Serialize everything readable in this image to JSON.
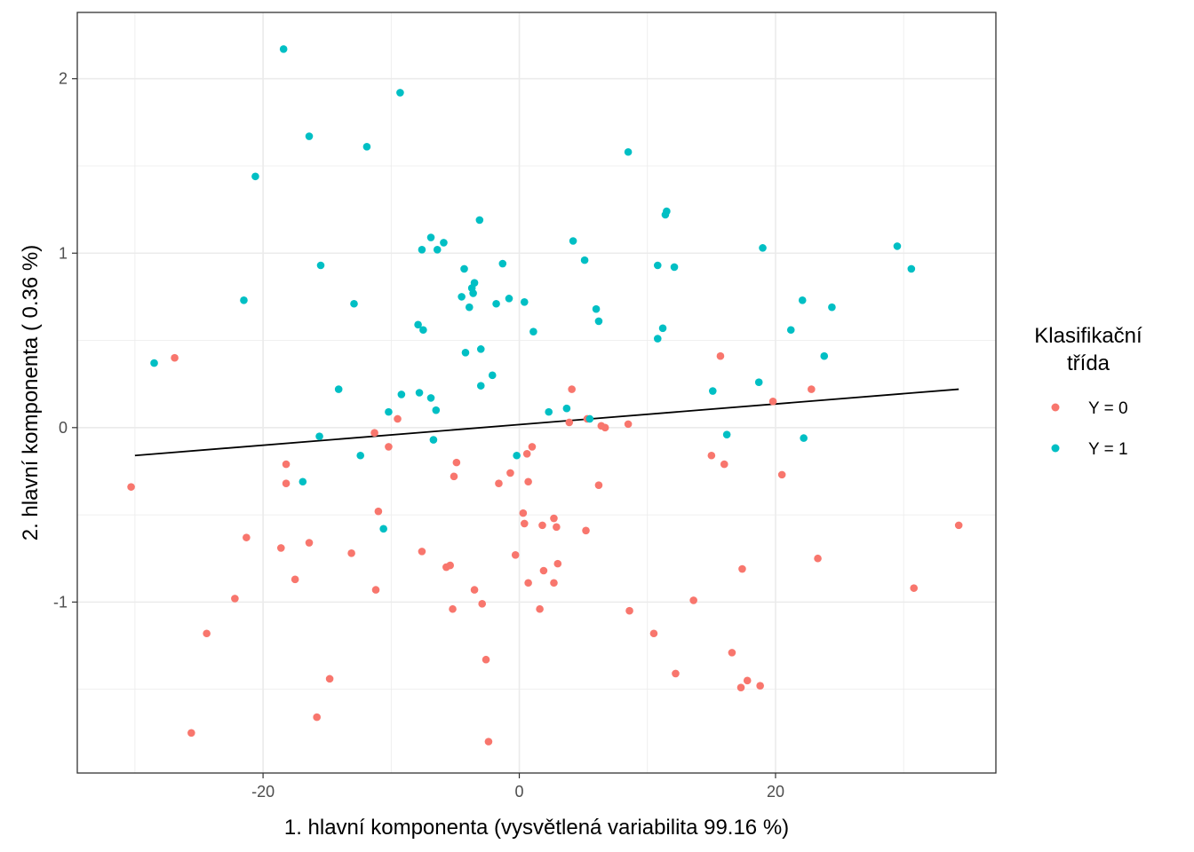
{
  "chart_data": {
    "type": "scatter",
    "title": "",
    "xlabel": "1. hlavní komponenta (vysvětlená variabilita 99.16 %)",
    "ylabel": "2. hlavní komponenta ( 0.36 %)",
    "xlim": [
      -34.5,
      37.2
    ],
    "ylim": [
      -1.98,
      2.38
    ],
    "x_ticks": [
      -20,
      0,
      20
    ],
    "x_tick_labels": [
      "-20",
      "0",
      "20"
    ],
    "y_ticks": [
      -1,
      0,
      1,
      2
    ],
    "y_tick_labels": [
      "-1",
      "0",
      "1",
      "2"
    ],
    "x_minor": [
      -30,
      -10,
      10,
      30
    ],
    "y_minor": [
      -1.5,
      -0.5,
      0.5,
      1.5
    ],
    "grid": true,
    "legend": {
      "title_lines": [
        "Klasifikační",
        "třída"
      ],
      "placement": "right"
    },
    "colors": {
      "Y = 0": "#f8766d",
      "Y = 1": "#00bfc4",
      "line": "#000000",
      "grid": "#ebebeb",
      "panel_border": "#333333"
    },
    "series": [
      {
        "name": "Y = 0",
        "color": "#f8766d",
        "points": [
          [
            -30.3,
            -0.34
          ],
          [
            -26.9,
            0.4
          ],
          [
            -25.6,
            -1.75
          ],
          [
            -24.4,
            -1.18
          ],
          [
            -22.2,
            -0.98
          ],
          [
            -21.3,
            -0.63
          ],
          [
            -18.6,
            -0.69
          ],
          [
            -18.2,
            -0.21
          ],
          [
            -18.2,
            -0.32
          ],
          [
            -17.5,
            -0.87
          ],
          [
            -16.4,
            -0.66
          ],
          [
            -15.8,
            -1.66
          ],
          [
            -14.8,
            -1.44
          ],
          [
            -13.1,
            -0.72
          ],
          [
            -11.3,
            -0.03
          ],
          [
            -11.2,
            -0.93
          ],
          [
            -11.0,
            -0.48
          ],
          [
            -10.2,
            -0.11
          ],
          [
            -9.5,
            0.05
          ],
          [
            -7.6,
            -0.71
          ],
          [
            -5.7,
            -0.8
          ],
          [
            -5.4,
            -0.79
          ],
          [
            -5.2,
            -1.04
          ],
          [
            -5.1,
            -0.28
          ],
          [
            -4.9,
            -0.2
          ],
          [
            -3.5,
            -0.93
          ],
          [
            -2.9,
            -1.01
          ],
          [
            -2.6,
            -1.33
          ],
          [
            -2.4,
            -1.8
          ],
          [
            -1.6,
            -0.32
          ],
          [
            -0.7,
            -0.26
          ],
          [
            -0.3,
            -0.73
          ],
          [
            0.3,
            -0.49
          ],
          [
            0.4,
            -0.55
          ],
          [
            0.6,
            -0.15
          ],
          [
            0.7,
            -0.89
          ],
          [
            0.7,
            -0.31
          ],
          [
            1.0,
            -0.11
          ],
          [
            1.6,
            -1.04
          ],
          [
            1.8,
            -0.56
          ],
          [
            1.9,
            -0.82
          ],
          [
            2.7,
            -0.52
          ],
          [
            2.7,
            -0.89
          ],
          [
            2.9,
            -0.57
          ],
          [
            3.0,
            -0.78
          ],
          [
            3.9,
            0.03
          ],
          [
            4.1,
            0.22
          ],
          [
            5.2,
            -0.59
          ],
          [
            5.3,
            0.05
          ],
          [
            6.2,
            -0.33
          ],
          [
            6.4,
            0.01
          ],
          [
            6.7,
            0.0
          ],
          [
            8.5,
            0.02
          ],
          [
            8.6,
            -1.05
          ],
          [
            10.5,
            -1.18
          ],
          [
            12.2,
            -1.41
          ],
          [
            13.6,
            -0.99
          ],
          [
            15.0,
            -0.16
          ],
          [
            15.7,
            0.41
          ],
          [
            16.0,
            -0.21
          ],
          [
            16.6,
            -1.29
          ],
          [
            17.3,
            -1.49
          ],
          [
            17.4,
            -0.81
          ],
          [
            17.8,
            -1.45
          ],
          [
            18.8,
            -1.48
          ],
          [
            19.8,
            0.15
          ],
          [
            20.5,
            -0.27
          ],
          [
            22.8,
            0.22
          ],
          [
            23.3,
            -0.75
          ],
          [
            30.8,
            -0.92
          ],
          [
            34.3,
            -0.56
          ]
        ]
      },
      {
        "name": "Y = 1",
        "color": "#00bfc4",
        "points": [
          [
            -28.5,
            0.37
          ],
          [
            -21.5,
            0.73
          ],
          [
            -20.6,
            1.44
          ],
          [
            -18.4,
            2.17
          ],
          [
            -16.9,
            -0.31
          ],
          [
            -16.4,
            1.67
          ],
          [
            -15.6,
            -0.05
          ],
          [
            -15.5,
            0.93
          ],
          [
            -14.1,
            0.22
          ],
          [
            -12.9,
            0.71
          ],
          [
            -12.4,
            -0.16
          ],
          [
            -11.9,
            1.61
          ],
          [
            -10.6,
            -0.58
          ],
          [
            -10.2,
            0.09
          ],
          [
            -9.3,
            1.92
          ],
          [
            -9.2,
            0.19
          ],
          [
            -7.9,
            0.59
          ],
          [
            -7.8,
            0.2
          ],
          [
            -7.6,
            1.02
          ],
          [
            -7.5,
            0.56
          ],
          [
            -6.9,
            1.09
          ],
          [
            -6.9,
            0.17
          ],
          [
            -6.7,
            -0.07
          ],
          [
            -6.5,
            0.1
          ],
          [
            -6.4,
            1.02
          ],
          [
            -5.9,
            1.06
          ],
          [
            -4.5,
            0.75
          ],
          [
            -4.3,
            0.91
          ],
          [
            -4.2,
            0.43
          ],
          [
            -3.9,
            0.69
          ],
          [
            -3.7,
            0.8
          ],
          [
            -3.6,
            0.77
          ],
          [
            -3.5,
            0.83
          ],
          [
            -3.1,
            1.19
          ],
          [
            -3.0,
            0.45
          ],
          [
            -3.0,
            0.24
          ],
          [
            -2.1,
            0.3
          ],
          [
            -1.8,
            0.71
          ],
          [
            -1.3,
            0.94
          ],
          [
            -0.8,
            0.74
          ],
          [
            -0.2,
            -0.16
          ],
          [
            0.4,
            0.72
          ],
          [
            1.1,
            0.55
          ],
          [
            2.3,
            0.09
          ],
          [
            3.7,
            0.11
          ],
          [
            4.2,
            1.07
          ],
          [
            5.1,
            0.96
          ],
          [
            5.5,
            0.05
          ],
          [
            6.0,
            0.68
          ],
          [
            6.2,
            0.61
          ],
          [
            8.5,
            1.58
          ],
          [
            10.8,
            0.51
          ],
          [
            10.8,
            0.93
          ],
          [
            11.2,
            0.57
          ],
          [
            11.4,
            1.22
          ],
          [
            11.5,
            1.24
          ],
          [
            12.1,
            0.92
          ],
          [
            15.1,
            0.21
          ],
          [
            16.2,
            -0.04
          ],
          [
            18.7,
            0.26
          ],
          [
            19.0,
            1.03
          ],
          [
            21.2,
            0.56
          ],
          [
            22.1,
            0.73
          ],
          [
            22.2,
            -0.06
          ],
          [
            23.8,
            0.41
          ],
          [
            24.4,
            0.69
          ],
          [
            29.5,
            1.04
          ],
          [
            30.6,
            0.91
          ]
        ]
      }
    ],
    "line": {
      "color": "#000000",
      "x": [
        -30.0,
        34.3
      ],
      "y": [
        -0.16,
        0.22
      ]
    }
  }
}
